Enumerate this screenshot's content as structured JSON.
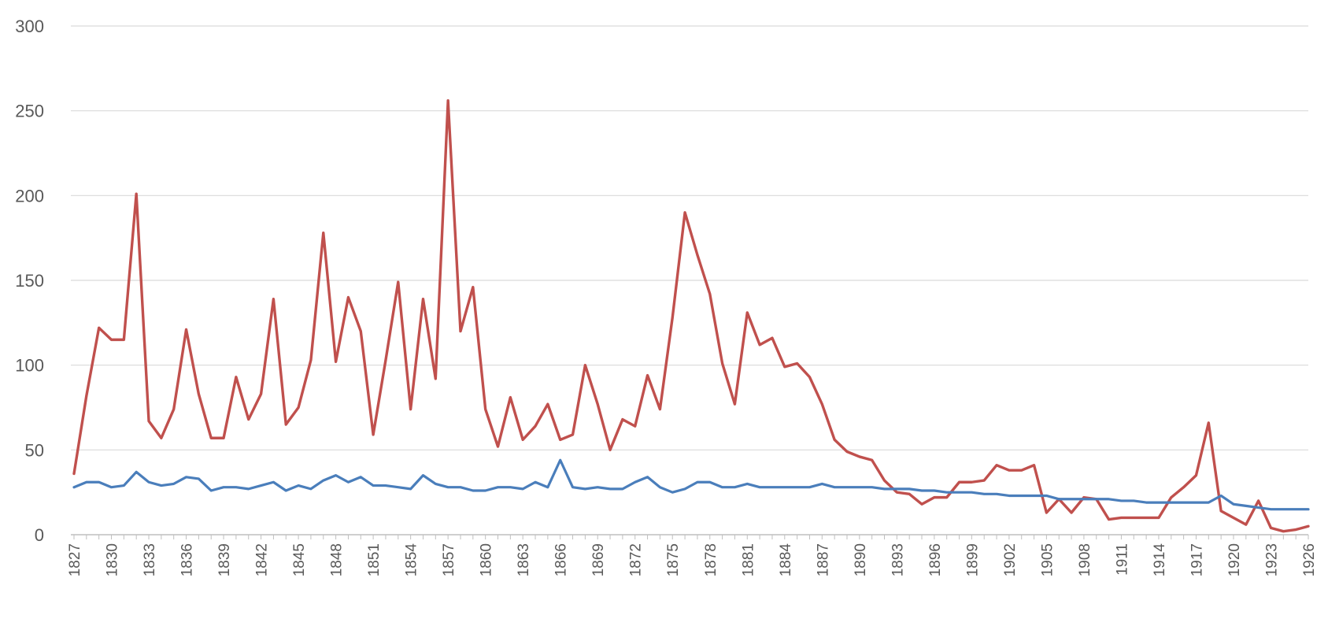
{
  "chart_data": {
    "type": "line",
    "title": "",
    "xlabel": "",
    "ylabel": "",
    "ylim": [
      0,
      300
    ],
    "yticks": [
      0,
      50,
      100,
      150,
      200,
      250,
      300
    ],
    "xlim": [
      1827,
      1926
    ],
    "xticks": [
      1827,
      1830,
      1833,
      1836,
      1839,
      1842,
      1845,
      1848,
      1851,
      1854,
      1857,
      1860,
      1863,
      1866,
      1869,
      1872,
      1875,
      1878,
      1881,
      1884,
      1887,
      1890,
      1893,
      1896,
      1899,
      1902,
      1905,
      1908,
      1911,
      1914,
      1917,
      1920,
      1923,
      1926
    ],
    "grid": true,
    "legend": "none",
    "x": [
      1827,
      1828,
      1829,
      1830,
      1831,
      1832,
      1833,
      1834,
      1835,
      1836,
      1837,
      1838,
      1839,
      1840,
      1841,
      1842,
      1843,
      1844,
      1845,
      1846,
      1847,
      1848,
      1849,
      1850,
      1851,
      1852,
      1853,
      1854,
      1855,
      1856,
      1857,
      1858,
      1859,
      1860,
      1861,
      1862,
      1863,
      1864,
      1865,
      1866,
      1867,
      1868,
      1869,
      1870,
      1871,
      1872,
      1873,
      1874,
      1875,
      1876,
      1877,
      1878,
      1879,
      1880,
      1881,
      1882,
      1883,
      1884,
      1885,
      1886,
      1887,
      1888,
      1889,
      1890,
      1891,
      1892,
      1893,
      1894,
      1895,
      1896,
      1897,
      1898,
      1899,
      1900,
      1901,
      1902,
      1903,
      1904,
      1905,
      1906,
      1907,
      1908,
      1909,
      1910,
      1911,
      1912,
      1913,
      1914,
      1915,
      1916,
      1917,
      1918,
      1919,
      1920,
      1921,
      1922,
      1923,
      1924,
      1925,
      1926
    ],
    "series": [
      {
        "color": "#c0504d",
        "values": [
          36,
          82,
          122,
          115,
          115,
          201,
          67,
          57,
          74,
          121,
          83,
          57,
          57,
          93,
          68,
          83,
          139,
          65,
          75,
          103,
          178,
          102,
          140,
          120,
          59,
          103,
          149,
          74,
          139,
          92,
          256,
          120,
          146,
          74,
          52,
          81,
          56,
          64,
          77,
          56,
          59,
          100,
          77,
          50,
          68,
          64,
          94,
          74,
          128,
          190,
          165,
          142,
          101,
          77,
          131,
          112,
          116,
          99,
          101,
          93,
          77,
          56,
          49,
          46,
          44,
          32,
          25,
          24,
          18,
          22,
          22,
          31,
          31,
          32,
          41,
          38,
          38,
          41,
          13,
          21,
          13,
          22,
          21,
          9,
          10,
          10,
          10,
          10,
          22,
          28,
          35,
          66,
          14,
          10,
          6,
          20,
          4,
          2,
          3,
          5
        ]
      },
      {
        "color": "#4a7ebb",
        "values": [
          28,
          31,
          31,
          28,
          29,
          37,
          31,
          29,
          30,
          34,
          33,
          26,
          28,
          28,
          27,
          29,
          31,
          26,
          29,
          27,
          32,
          35,
          31,
          34,
          29,
          29,
          28,
          27,
          35,
          30,
          28,
          28,
          26,
          26,
          28,
          28,
          27,
          31,
          28,
          44,
          28,
          27,
          28,
          27,
          27,
          31,
          34,
          28,
          25,
          27,
          31,
          31,
          28,
          28,
          30,
          28,
          28,
          28,
          28,
          28,
          30,
          28,
          28,
          28,
          28,
          27,
          27,
          27,
          26,
          26,
          25,
          25,
          25,
          24,
          24,
          23,
          23,
          23,
          23,
          21,
          21,
          21,
          21,
          21,
          20,
          20,
          19,
          19,
          19,
          19,
          19,
          19,
          23,
          18,
          17,
          16,
          15,
          15,
          15,
          15
        ]
      }
    ]
  }
}
